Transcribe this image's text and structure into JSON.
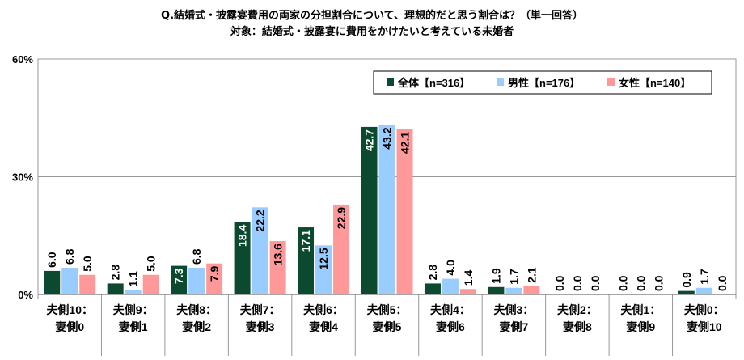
{
  "chart_data": {
    "type": "bar",
    "title": "Q.結婚式・披露宴費用の両家の分担割合について、理想的だと思う割合は？（単一回答）",
    "subtitle": "対象：結婚式・披露宴に費用をかけたいと考えている未婚者",
    "categories": [
      [
        "夫側10：",
        "妻側0"
      ],
      [
        "夫側9：",
        "妻側1"
      ],
      [
        "夫側8：",
        "妻側2"
      ],
      [
        "夫側7：",
        "妻側3"
      ],
      [
        "夫側6：",
        "妻側4"
      ],
      [
        "夫側5：",
        "妻側5"
      ],
      [
        "夫側4：",
        "妻側6"
      ],
      [
        "夫側3：",
        "妻側7"
      ],
      [
        "夫側2：",
        "妻側8"
      ],
      [
        "夫側1：",
        "妻側9"
      ],
      [
        "夫側0：",
        "妻側10"
      ]
    ],
    "series": [
      {
        "name": "全体【n=316】",
        "color": "#0b4a2e",
        "label_color": "#ffffff",
        "values": [
          6.0,
          2.8,
          7.3,
          18.4,
          17.1,
          42.7,
          2.8,
          1.9,
          0.0,
          0.0,
          0.9
        ]
      },
      {
        "name": "男性【n=176】",
        "color": "#99ccff",
        "label_color": "#000000",
        "values": [
          6.8,
          1.1,
          6.8,
          22.2,
          12.5,
          43.2,
          4.0,
          1.7,
          0.0,
          0.0,
          1.7
        ]
      },
      {
        "name": "女性【n=140】",
        "color": "#ff9999",
        "label_color": "#000000",
        "values": [
          5.0,
          5.0,
          7.9,
          13.6,
          22.9,
          42.1,
          1.4,
          2.1,
          0.0,
          0.0,
          0.0
        ]
      }
    ],
    "yticks": [
      "0%",
      "30%",
      "60%"
    ],
    "ylim": [
      0,
      60
    ],
    "xlabel": "",
    "ylabel": "",
    "grid": true,
    "legend_position": "top-right"
  }
}
